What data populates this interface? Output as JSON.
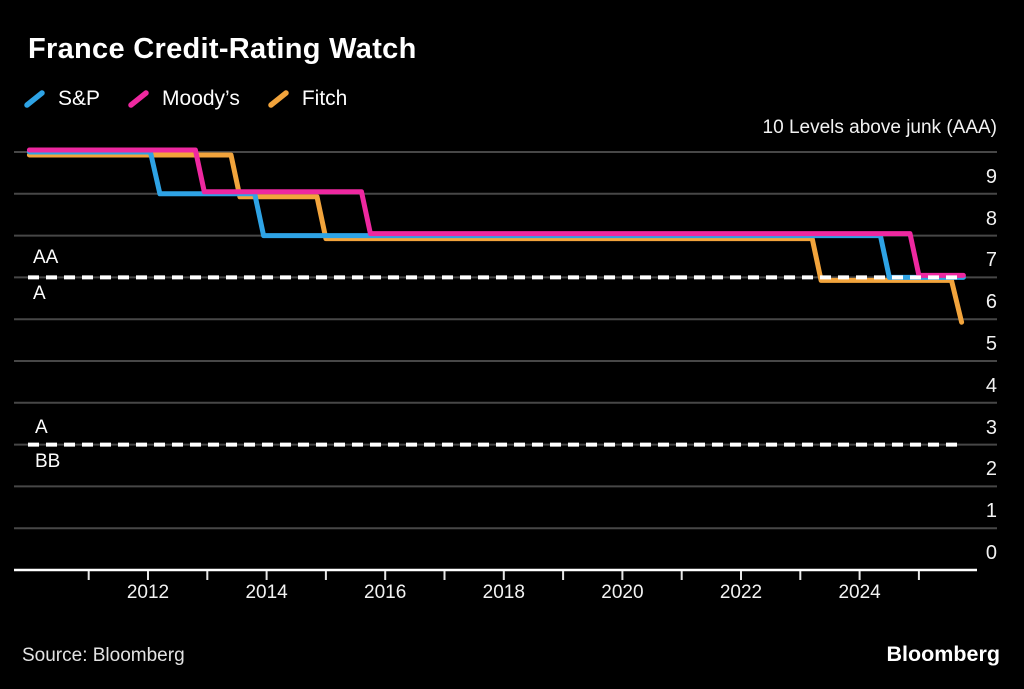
{
  "title": "France Credit-Rating Watch",
  "footer": {
    "source_label": "Source: Bloomberg",
    "brand": "Bloomberg"
  },
  "colors": {
    "background": "#000000",
    "gridline": "#474747",
    "axis": "#ffffff",
    "boundary_dash": "#ffffff",
    "text": "#f2f2f2"
  },
  "chart_data": {
    "type": "line",
    "subtype": "step",
    "title": "France Credit-Rating Watch",
    "y_axis_top_label": "10 Levels above junk (AAA)",
    "ylabel": "Levels above junk",
    "ylim": [
      0,
      10
    ],
    "xlim": [
      2010,
      2025.8
    ],
    "grid": "horizontal",
    "legend_position": "top-left",
    "y_ticks": [
      "9",
      "8",
      "7",
      "6",
      "5",
      "4",
      "3",
      "2",
      "1",
      "0"
    ],
    "x_tick_labels": [
      "2012",
      "2014",
      "2016",
      "2018",
      "2020",
      "2022",
      "2024"
    ],
    "x_minor_tick_years": [
      2011,
      2012,
      2013,
      2014,
      2015,
      2016,
      2017,
      2018,
      2019,
      2020,
      2021,
      2022,
      2023,
      2024,
      2025
    ],
    "reference_lines": [
      {
        "level": 7,
        "style": "dashed",
        "label_above": "AA",
        "label_below": "A"
      },
      {
        "level": 3,
        "style": "dashed",
        "label_above": "A",
        "label_below": "BB"
      }
    ],
    "series": [
      {
        "name": "S&P",
        "color": "#2EA3E5",
        "points": [
          [
            2010.0,
            10
          ],
          [
            2012.04,
            10
          ],
          [
            2012.2,
            9
          ],
          [
            2013.8,
            9
          ],
          [
            2013.95,
            8
          ],
          [
            2024.35,
            8
          ],
          [
            2024.5,
            7
          ],
          [
            2025.75,
            7
          ]
        ]
      },
      {
        "name": "Moody’s",
        "color": "#EE28A0",
        "points": [
          [
            2010.0,
            10
          ],
          [
            2012.8,
            10
          ],
          [
            2012.95,
            9
          ],
          [
            2015.6,
            9
          ],
          [
            2015.75,
            8
          ],
          [
            2024.85,
            8
          ],
          [
            2025.0,
            7
          ],
          [
            2025.75,
            7
          ]
        ]
      },
      {
        "name": "Fitch",
        "color": "#F2A43C",
        "points": [
          [
            2010.0,
            10
          ],
          [
            2013.4,
            10
          ],
          [
            2013.55,
            9
          ],
          [
            2014.85,
            9
          ],
          [
            2015.0,
            8
          ],
          [
            2023.2,
            8
          ],
          [
            2023.35,
            7
          ],
          [
            2025.55,
            7
          ],
          [
            2025.72,
            6
          ]
        ]
      }
    ]
  }
}
